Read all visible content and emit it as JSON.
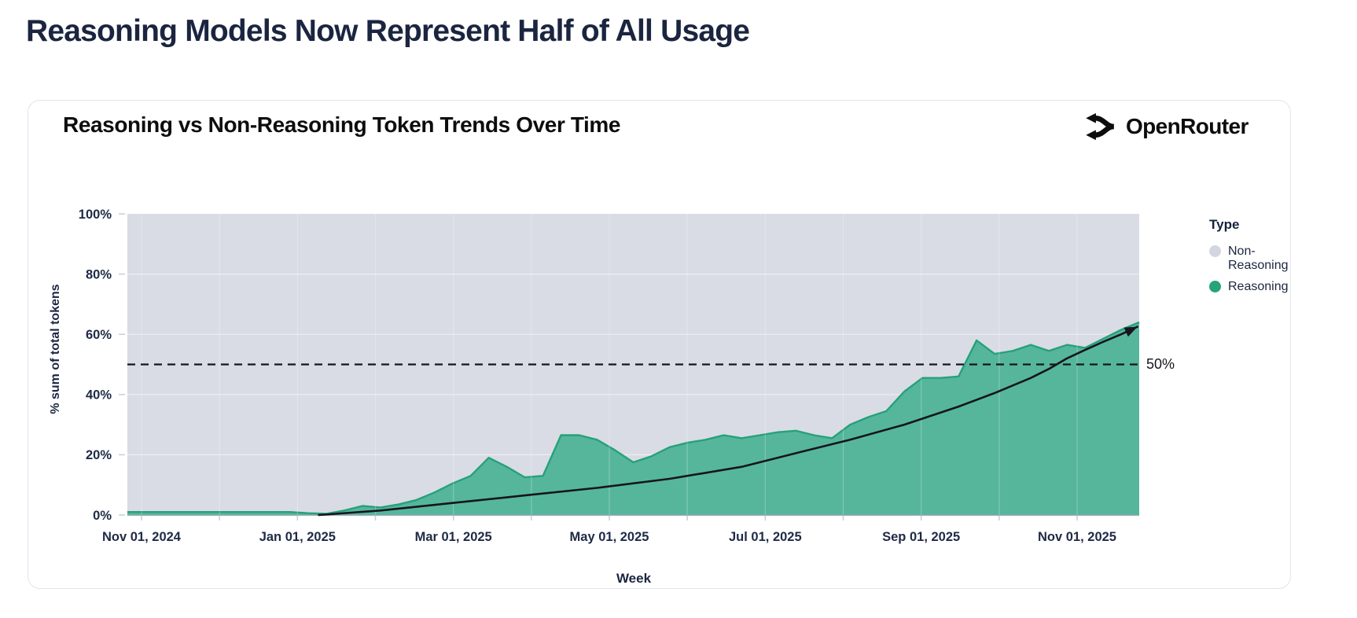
{
  "page": {
    "title": "Reasoning Models Now Represent Half of All Usage"
  },
  "card": {
    "title": "Reasoning vs Non-Reasoning Token Trends Over Time",
    "brand_name": "OpenRouter",
    "brand_icon": "openrouter-logo"
  },
  "chart_data": {
    "type": "area",
    "stacked": true,
    "percent_scale": true,
    "title": "Reasoning vs Non-Reasoning Token Trends Over Time",
    "xlabel": "Week",
    "ylabel": "% sum of total tokens",
    "ylim": [
      0,
      100
    ],
    "y_tick_labels": [
      "0%",
      "20%",
      "40%",
      "60%",
      "80%",
      "100%"
    ],
    "x_tick_labels": [
      "Nov 01, 2024",
      "Jan 01, 2025",
      "Mar 01, 2025",
      "May 01, 2025",
      "Jul 01, 2025",
      "Sep 01, 2025",
      "Nov 01, 2025"
    ],
    "grid": true,
    "legend_position": "right",
    "legend": {
      "title": "Type",
      "items": [
        {
          "label": "Non-Reasoning",
          "color": "#d3d6e0"
        },
        {
          "label": "Reasoning",
          "color": "#27a378"
        }
      ]
    },
    "annotation": {
      "label": "50%",
      "value": 50,
      "style": "dashed-black-line"
    },
    "colors": {
      "reasoning_fill": "#56b69b",
      "reasoning_stroke": "#26a17a",
      "non_reasoning_fill": "#d9dce4",
      "trend_line": "#15151f"
    },
    "x": [
      "2024-10-27",
      "2024-11-03",
      "2024-11-10",
      "2024-11-17",
      "2024-11-24",
      "2024-12-01",
      "2024-12-08",
      "2024-12-15",
      "2024-12-22",
      "2024-12-29",
      "2025-01-05",
      "2025-01-12",
      "2025-01-19",
      "2025-01-26",
      "2025-02-02",
      "2025-02-09",
      "2025-02-16",
      "2025-02-23",
      "2025-03-02",
      "2025-03-09",
      "2025-03-16",
      "2025-03-23",
      "2025-03-30",
      "2025-04-06",
      "2025-04-13",
      "2025-04-20",
      "2025-04-27",
      "2025-05-04",
      "2025-05-11",
      "2025-05-18",
      "2025-05-25",
      "2025-06-01",
      "2025-06-08",
      "2025-06-15",
      "2025-06-22",
      "2025-06-29",
      "2025-07-06",
      "2025-07-13",
      "2025-07-20",
      "2025-07-27",
      "2025-08-03",
      "2025-08-10",
      "2025-08-17",
      "2025-08-24",
      "2025-08-31",
      "2025-09-07",
      "2025-09-14",
      "2025-09-21",
      "2025-09-28",
      "2025-10-05",
      "2025-10-12",
      "2025-10-19",
      "2025-10-26",
      "2025-11-02",
      "2025-11-09",
      "2025-11-16",
      "2025-11-23"
    ],
    "series": [
      {
        "name": "Reasoning",
        "values": [
          1,
          1,
          1,
          1,
          1,
          1,
          1,
          1,
          1,
          1,
          0.6,
          0.4,
          1.5,
          3,
          2.5,
          3.5,
          5,
          7.5,
          10.5,
          13,
          19,
          16,
          12.5,
          13,
          26.5,
          26.5,
          25,
          21.5,
          17.5,
          19.5,
          22.5,
          24,
          25,
          26.5,
          25.5,
          26.5,
          27.5,
          28,
          26.5,
          25.5,
          30,
          32.5,
          34.5,
          41,
          45.5,
          45.5,
          46,
          58,
          53.5,
          54.5,
          56.5,
          54.5,
          56.5,
          55.5,
          58.5,
          61.5,
          64
        ]
      },
      {
        "name": "Non-Reasoning",
        "values": [
          99,
          99,
          99,
          99,
          99,
          99,
          99,
          99,
          99,
          99,
          99.4,
          99.6,
          98.5,
          97,
          97.5,
          96.5,
          95,
          92.5,
          89.5,
          87,
          81,
          84,
          87.5,
          87,
          73.5,
          73.5,
          75,
          78.5,
          82.5,
          80.5,
          77.5,
          76,
          75,
          73.5,
          74.5,
          73.5,
          72.5,
          72,
          73.5,
          74.5,
          70,
          67.5,
          65.5,
          59,
          54.5,
          54.5,
          54,
          42,
          46.5,
          45.5,
          43.5,
          45.5,
          43.5,
          44.5,
          41.5,
          38.5,
          36
        ]
      }
    ],
    "trend_arrow_points": [
      [
        10.6,
        0
      ],
      [
        14,
        1.5
      ],
      [
        18,
        4
      ],
      [
        22,
        6.5
      ],
      [
        26,
        9
      ],
      [
        30,
        12
      ],
      [
        34,
        16
      ],
      [
        37.3,
        21
      ],
      [
        40,
        25
      ],
      [
        43,
        30
      ],
      [
        46,
        36
      ],
      [
        48,
        40.5
      ],
      [
        50,
        45.5
      ],
      [
        51,
        48.5
      ],
      [
        52,
        52
      ],
      [
        53,
        54.8
      ],
      [
        54,
        57.5
      ],
      [
        55,
        60
      ],
      [
        55.9,
        62.5
      ]
    ]
  }
}
